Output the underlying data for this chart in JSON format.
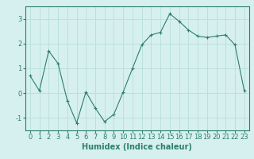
{
  "x": [
    0,
    1,
    2,
    3,
    4,
    5,
    6,
    7,
    8,
    9,
    10,
    11,
    12,
    13,
    14,
    15,
    16,
    17,
    18,
    19,
    20,
    21,
    22,
    23
  ],
  "y": [
    0.7,
    0.1,
    1.7,
    1.2,
    -0.3,
    -1.2,
    0.05,
    -0.6,
    -1.15,
    -0.85,
    0.05,
    1.0,
    1.95,
    2.35,
    2.45,
    3.2,
    2.9,
    2.55,
    2.3,
    2.25,
    2.3,
    2.35,
    1.95,
    0.1
  ],
  "line_color": "#2d7d6e",
  "marker": "D",
  "marker_size": 2,
  "background_color": "#d6f0ef",
  "grid_color": "#b8dedc",
  "xlabel": "Humidex (Indice chaleur)",
  "xlabel_fontsize": 7,
  "tick_fontsize": 6,
  "ylim": [
    -1.5,
    3.5
  ],
  "xlim": [
    -0.5,
    23.5
  ],
  "yticks": [
    -1,
    0,
    1,
    2,
    3
  ],
  "xticks": [
    0,
    1,
    2,
    3,
    4,
    5,
    6,
    7,
    8,
    9,
    10,
    11,
    12,
    13,
    14,
    15,
    16,
    17,
    18,
    19,
    20,
    21,
    22,
    23
  ],
  "xtick_labels": [
    "0",
    "1",
    "2",
    "3",
    "4",
    "5",
    "6",
    "7",
    "8",
    "9",
    "10",
    "11",
    "12",
    "13",
    "14",
    "15",
    "16",
    "17",
    "18",
    "19",
    "20",
    "21",
    "22",
    "23"
  ]
}
